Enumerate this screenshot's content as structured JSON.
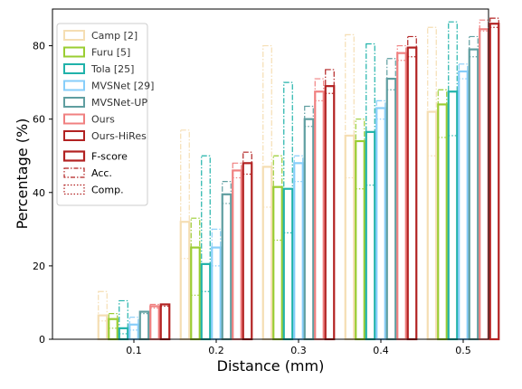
{
  "chart_data": {
    "type": "bar",
    "title": "",
    "xlabel": "Distance (mm)",
    "ylabel": "Percentage (%)",
    "ylim": [
      0,
      90
    ],
    "yticks": [
      0,
      20,
      40,
      60,
      80
    ],
    "categories": [
      "0.1",
      "0.2",
      "0.3",
      "0.4",
      "0.5"
    ],
    "grid": false,
    "legend_position": "top-left",
    "series": [
      {
        "name": "Camp [2]",
        "color": "#f5deb3",
        "fscore": [
          6.5,
          32,
          47,
          55.5,
          62
        ],
        "acc": [
          13,
          57,
          80,
          83,
          85
        ],
        "comp": [
          5,
          22,
          36,
          44,
          50
        ]
      },
      {
        "name": "Furu [5]",
        "color": "#9acd32",
        "fscore": [
          5.5,
          25,
          41.5,
          54,
          64
        ],
        "acc": [
          7,
          33,
          50,
          60,
          68
        ],
        "comp": [
          3,
          12,
          27,
          41,
          55
        ]
      },
      {
        "name": "Tola [25]",
        "color": "#20b2aa",
        "fscore": [
          3,
          20.5,
          41,
          56.5,
          67.5
        ],
        "acc": [
          10.5,
          50,
          70,
          80.5,
          86.5
        ],
        "comp": [
          1.5,
          13,
          29,
          42,
          55.5
        ]
      },
      {
        "name": "MVSNet [29]",
        "color": "#87cefa",
        "fscore": [
          4,
          25,
          48,
          63,
          73
        ],
        "acc": [
          6,
          30,
          50,
          65,
          75
        ],
        "comp": [
          2.5,
          20,
          43,
          60,
          71
        ]
      },
      {
        "name": "MVSNet-UP",
        "color": "#5f9ea0",
        "fscore": [
          7.5,
          39.5,
          60,
          71,
          79
        ],
        "acc": [
          7.5,
          43,
          63.5,
          76.5,
          82.5
        ],
        "comp": [
          7,
          37,
          58,
          68,
          77
        ]
      },
      {
        "name": "Ours",
        "color": "#f08080",
        "fscore": [
          9,
          46,
          67.5,
          78,
          84.5
        ],
        "acc": [
          9.5,
          48,
          71,
          80,
          87
        ],
        "comp": [
          8.5,
          44,
          65,
          76,
          84
        ]
      },
      {
        "name": "Ours-HiRes",
        "color": "#b22222",
        "fscore": [
          9.5,
          48,
          69,
          79.5,
          86
        ],
        "acc": [
          9.5,
          51,
          73.5,
          82.5,
          87.5
        ],
        "comp": [
          9,
          45,
          67,
          77,
          85
        ]
      }
    ],
    "metric_legend": [
      {
        "name": "F-score",
        "style": "solid"
      },
      {
        "name": "Acc.",
        "style": "dashdot"
      },
      {
        "name": "Comp.",
        "style": "dotted"
      }
    ]
  }
}
